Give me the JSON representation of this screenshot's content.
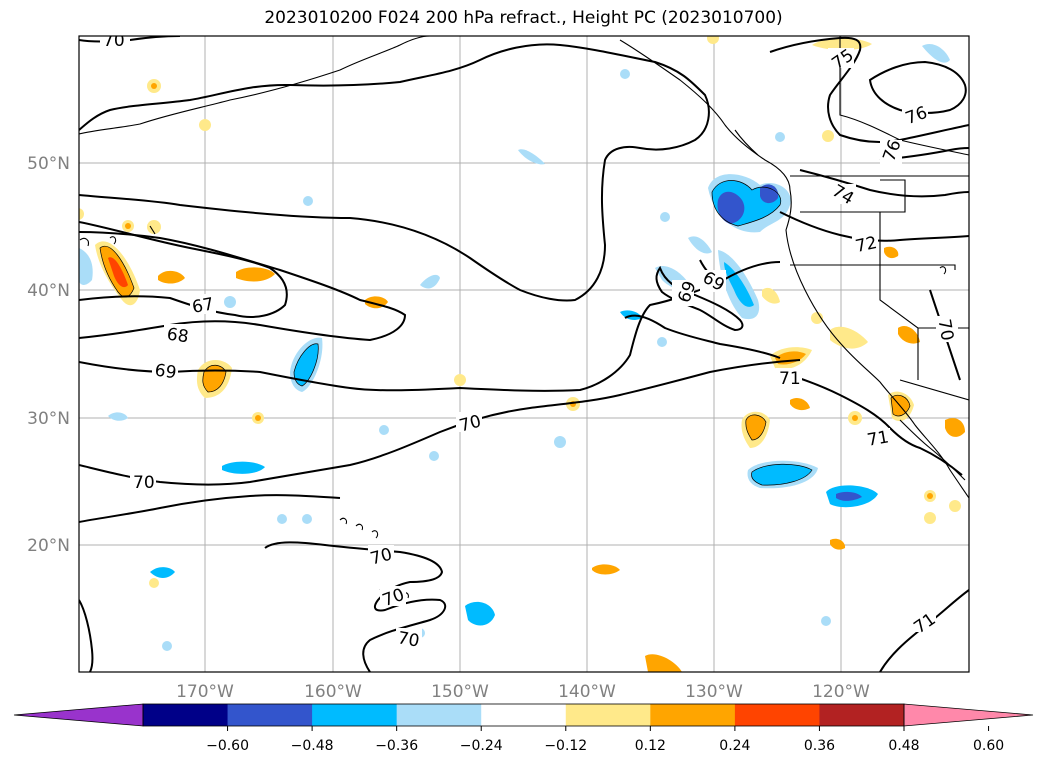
{
  "title": "2023010200 F024 200 hPa refract., Height PC (2023010700)",
  "lat_labels": [
    "50°N",
    "40°N",
    "30°N",
    "20°N"
  ],
  "lon_labels": [
    "170°W",
    "160°W",
    "150°W",
    "140°W",
    "130°W",
    "120°W"
  ],
  "colorbar": {
    "ticks": [
      "−0.60",
      "−0.48",
      "−0.36",
      "−0.24",
      "−0.12",
      "0.12",
      "0.24",
      "0.36",
      "0.48",
      "0.60"
    ],
    "colors": [
      "#9933cc",
      "#000088",
      "#3355cc",
      "#00bbff",
      "#aaddf8",
      "#ffffff",
      "#ffe98a",
      "#ffa500",
      "#ff4400",
      "#b22222",
      "#ff88aa"
    ]
  },
  "contour_labels": [
    "70",
    "67",
    "68",
    "69",
    "70",
    "70",
    "70",
    "70",
    "70",
    "69",
    "69",
    "71",
    "71",
    "71",
    "72",
    "74",
    "75",
    "76",
    "76",
    "70"
  ],
  "legend_colors": {
    "neg_light": "#aaddf8",
    "neg_mid": "#00bbff",
    "neg_dark": "#3355cc",
    "pos_light": "#ffe98a",
    "pos_mid": "#ffa500",
    "pos_dark": "#ff4400"
  }
}
